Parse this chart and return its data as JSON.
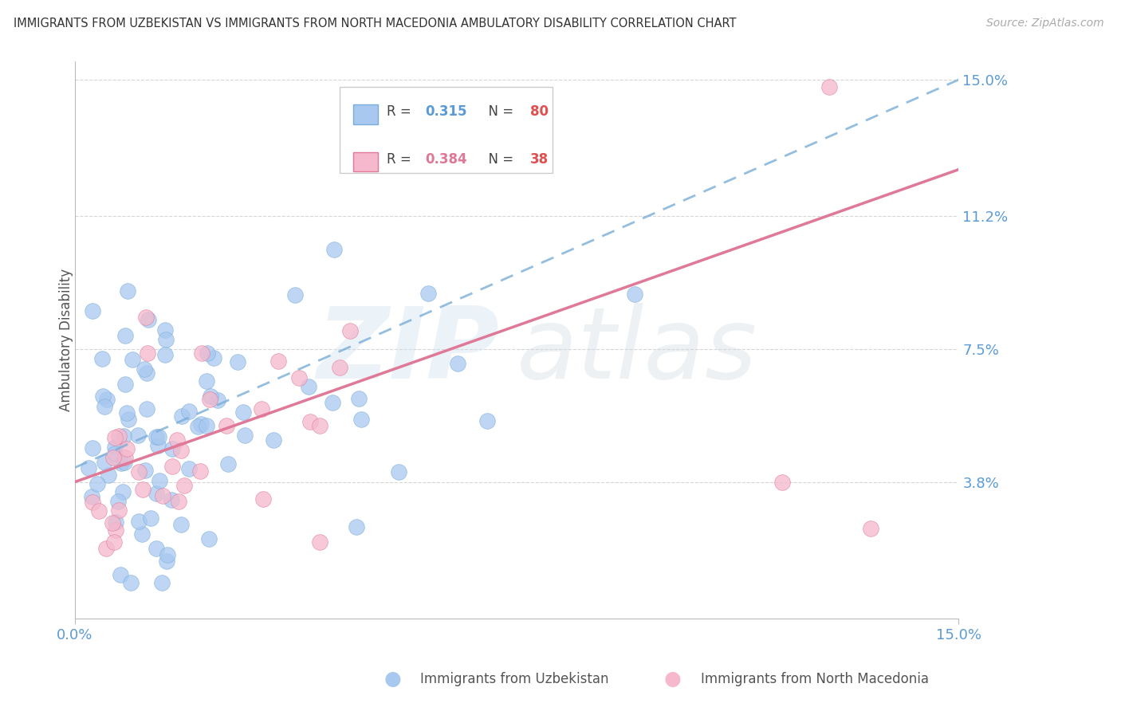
{
  "title": "IMMIGRANTS FROM UZBEKISTAN VS IMMIGRANTS FROM NORTH MACEDONIA AMBULATORY DISABILITY CORRELATION CHART",
  "source": "Source: ZipAtlas.com",
  "ylabel": "Ambulatory Disability",
  "xlim": [
    0.0,
    15.0
  ],
  "ylim": [
    0.0,
    15.5
  ],
  "yticks": [
    3.8,
    7.5,
    11.2,
    15.0
  ],
  "xticks": [
    0.0,
    15.0
  ],
  "xtick_labels": [
    "0.0%",
    "15.0%"
  ],
  "ytick_labels": [
    "3.8%",
    "7.5%",
    "11.2%",
    "15.0%"
  ],
  "series1_color": "#a8c8f0",
  "series1_edge": "#7aaed8",
  "series2_color": "#f5b8cc",
  "series2_edge": "#e07898",
  "trendline1_color": "#7aaed8",
  "trendline2_color": "#e07898",
  "background_color": "#ffffff",
  "grid_color": "#cccccc",
  "axis_label_color": "#5b9bd5",
  "R1": "0.315",
  "N1": "80",
  "R2": "0.384",
  "N2": "38",
  "legend1_label": "R = ",
  "legend2_label": "R = ",
  "bottom_label1": "Immigrants from Uzbekistan",
  "bottom_label2": "Immigrants from North Macedonia",
  "watermark_zip": "ZIP",
  "watermark_atlas": "atlas"
}
